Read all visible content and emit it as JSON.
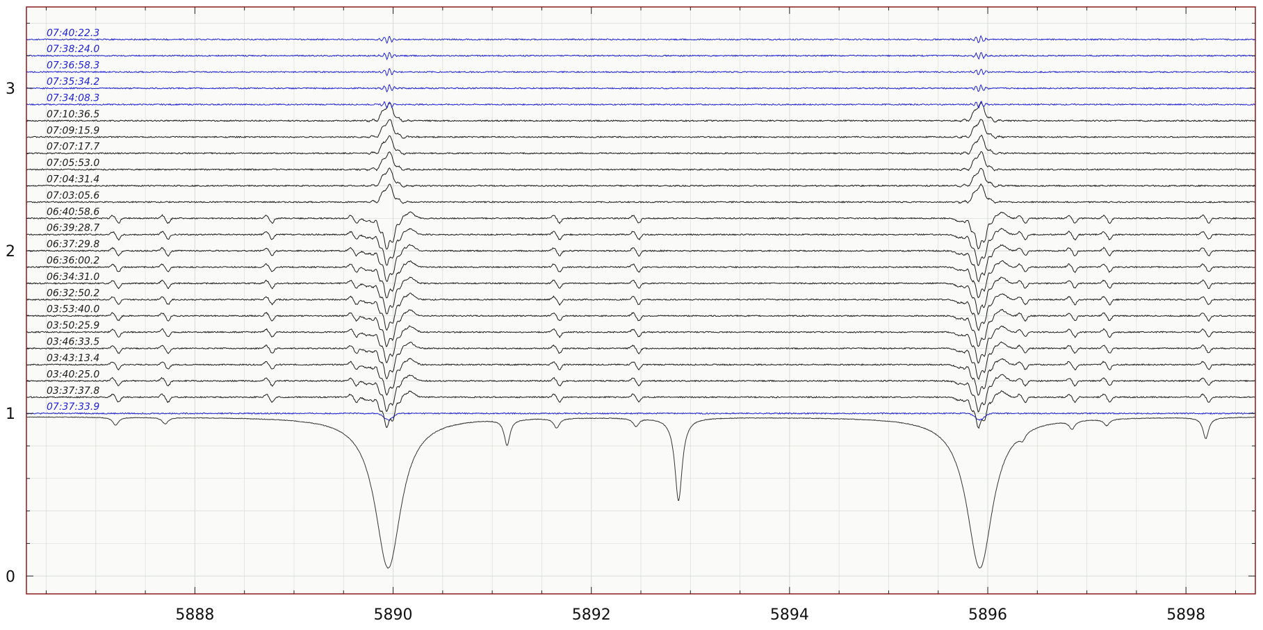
{
  "chart_data": {
    "type": "line",
    "title": "",
    "xlabel": "",
    "ylabel": "",
    "xlim": [
      5886.3,
      5898.7
    ],
    "ylim": [
      -0.11,
      3.5
    ],
    "grid": true,
    "xticks": [
      5888,
      5890,
      5892,
      5894,
      5896,
      5898
    ],
    "yticks": [
      0,
      1,
      2,
      3
    ],
    "colors": {
      "black_series": "#1a1a1a",
      "blue_series": "#1f1fd6",
      "plot_background": "#fafbf8",
      "frame": "#8b1a1a",
      "grid": "#d8ddd8",
      "reference_spectrum": "#333333"
    },
    "reference_spectrum": {
      "continuum": 0.98,
      "absorption_lines": [
        {
          "center": 5889.95,
          "depth": 0.93
        },
        {
          "center": 5895.92,
          "depth": 0.93
        },
        {
          "center": 5892.88,
          "depth": 0.51
        },
        {
          "center": 5891.15,
          "depth": 0.16
        },
        {
          "center": 5898.2,
          "depth": 0.13
        },
        {
          "center": 5887.2,
          "depth": 0.05
        },
        {
          "center": 5887.7,
          "depth": 0.04
        },
        {
          "center": 5891.65,
          "depth": 0.06
        },
        {
          "center": 5892.45,
          "depth": 0.05
        },
        {
          "center": 5896.35,
          "depth": 0.04
        },
        {
          "center": 5896.85,
          "depth": 0.05
        },
        {
          "center": 5897.2,
          "depth": 0.04
        }
      ]
    },
    "series": [
      {
        "name": "07:37:33.9",
        "offset": 1.0,
        "color": "blue",
        "feature": "reference"
      },
      {
        "name": "03:37:37.8",
        "offset": 1.1,
        "color": "black",
        "feature": "absorption"
      },
      {
        "name": "03:40:25.0",
        "offset": 1.2,
        "color": "black",
        "feature": "absorption"
      },
      {
        "name": "03:43:13.4",
        "offset": 1.3,
        "color": "black",
        "feature": "absorption"
      },
      {
        "name": "03:46:33.5",
        "offset": 1.4,
        "color": "black",
        "feature": "absorption"
      },
      {
        "name": "03:50:25.9",
        "offset": 1.5,
        "color": "black",
        "feature": "absorption"
      },
      {
        "name": "03:53:40.0",
        "offset": 1.6,
        "color": "black",
        "feature": "absorption"
      },
      {
        "name": "06:32:50.2",
        "offset": 1.7,
        "color": "black",
        "feature": "absorption"
      },
      {
        "name": "06:34:31.0",
        "offset": 1.8,
        "color": "black",
        "feature": "absorption"
      },
      {
        "name": "06:36:00.2",
        "offset": 1.9,
        "color": "black",
        "feature": "absorption"
      },
      {
        "name": "06:37:29.8",
        "offset": 2.0,
        "color": "black",
        "feature": "absorption"
      },
      {
        "name": "06:39:28.7",
        "offset": 2.1,
        "color": "black",
        "feature": "absorption"
      },
      {
        "name": "06:40:58.6",
        "offset": 2.2,
        "color": "black",
        "feature": "absorption"
      },
      {
        "name": "07:03:05.6",
        "offset": 2.3,
        "color": "black",
        "feature": "emission"
      },
      {
        "name": "07:04:31.4",
        "offset": 2.4,
        "color": "black",
        "feature": "emission"
      },
      {
        "name": "07:05:53.0",
        "offset": 2.5,
        "color": "black",
        "feature": "emission"
      },
      {
        "name": "07:07:17.7",
        "offset": 2.6,
        "color": "black",
        "feature": "emission"
      },
      {
        "name": "07:09:15.9",
        "offset": 2.7,
        "color": "black",
        "feature": "emission"
      },
      {
        "name": "07:10:36.5",
        "offset": 2.8,
        "color": "black",
        "feature": "emission"
      },
      {
        "name": "07:34:08.3",
        "offset": 2.9,
        "color": "blue",
        "feature": "flat"
      },
      {
        "name": "07:35:34.2",
        "offset": 3.0,
        "color": "blue",
        "feature": "flat"
      },
      {
        "name": "07:36:58.3",
        "offset": 3.1,
        "color": "blue",
        "feature": "flat"
      },
      {
        "name": "07:38:24.0",
        "offset": 3.2,
        "color": "blue",
        "feature": "flat"
      },
      {
        "name": "07:40:22.3",
        "offset": 3.3,
        "color": "blue",
        "feature": "flat"
      }
    ]
  }
}
